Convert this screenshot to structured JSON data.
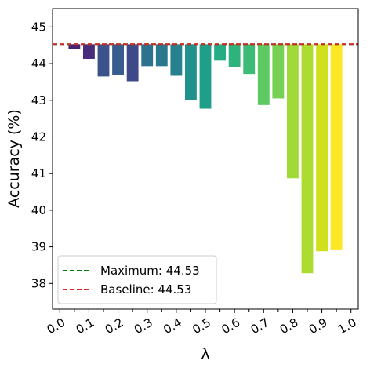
{
  "chart_data": {
    "type": "bar",
    "xlabel": "λ",
    "ylabel": "Accuracy (%)",
    "ylim": [
      37.3,
      45.5
    ],
    "yticks": [
      38,
      39,
      40,
      41,
      42,
      43,
      44,
      45
    ],
    "xtick_labels": [
      "0.0",
      "0.1",
      "0.2",
      "0.3",
      "0.4",
      "0.5",
      "0.6",
      "0.7",
      "0.8",
      "0.9",
      "1.0"
    ],
    "categories": [
      0.05,
      0.1,
      0.15,
      0.2,
      0.25,
      0.3,
      0.35,
      0.4,
      0.45,
      0.5,
      0.55,
      0.6,
      0.65,
      0.7,
      0.75,
      0.8,
      0.85,
      0.9,
      0.95
    ],
    "values": [
      44.4,
      44.13,
      43.65,
      43.7,
      43.52,
      43.93,
      43.93,
      43.67,
      43.0,
      42.77,
      44.08,
      43.9,
      43.72,
      42.87,
      43.05,
      40.87,
      38.28,
      38.88,
      38.93
    ],
    "bar_colors": [
      "#482173",
      "#472d7b",
      "#3b528b",
      "#365d8d",
      "#3e4989",
      "#2c728e",
      "#2a788e",
      "#27808e",
      "#21918c",
      "#1f9e89",
      "#25ac82",
      "#2eb37c",
      "#3bbb75",
      "#5ec962",
      "#75d054",
      "#a0da39",
      "#addc30",
      "#d0e11c",
      "#fde725"
    ],
    "reference_lines": [
      {
        "name": "Maximum: 44.53",
        "value": 44.53,
        "color": "#008000",
        "style": "dashed"
      },
      {
        "name": "Baseline: 44.53",
        "value": 44.53,
        "color": "#d62728",
        "style": "dashed"
      }
    ],
    "legend_position": "lower-left",
    "grid": false
  }
}
